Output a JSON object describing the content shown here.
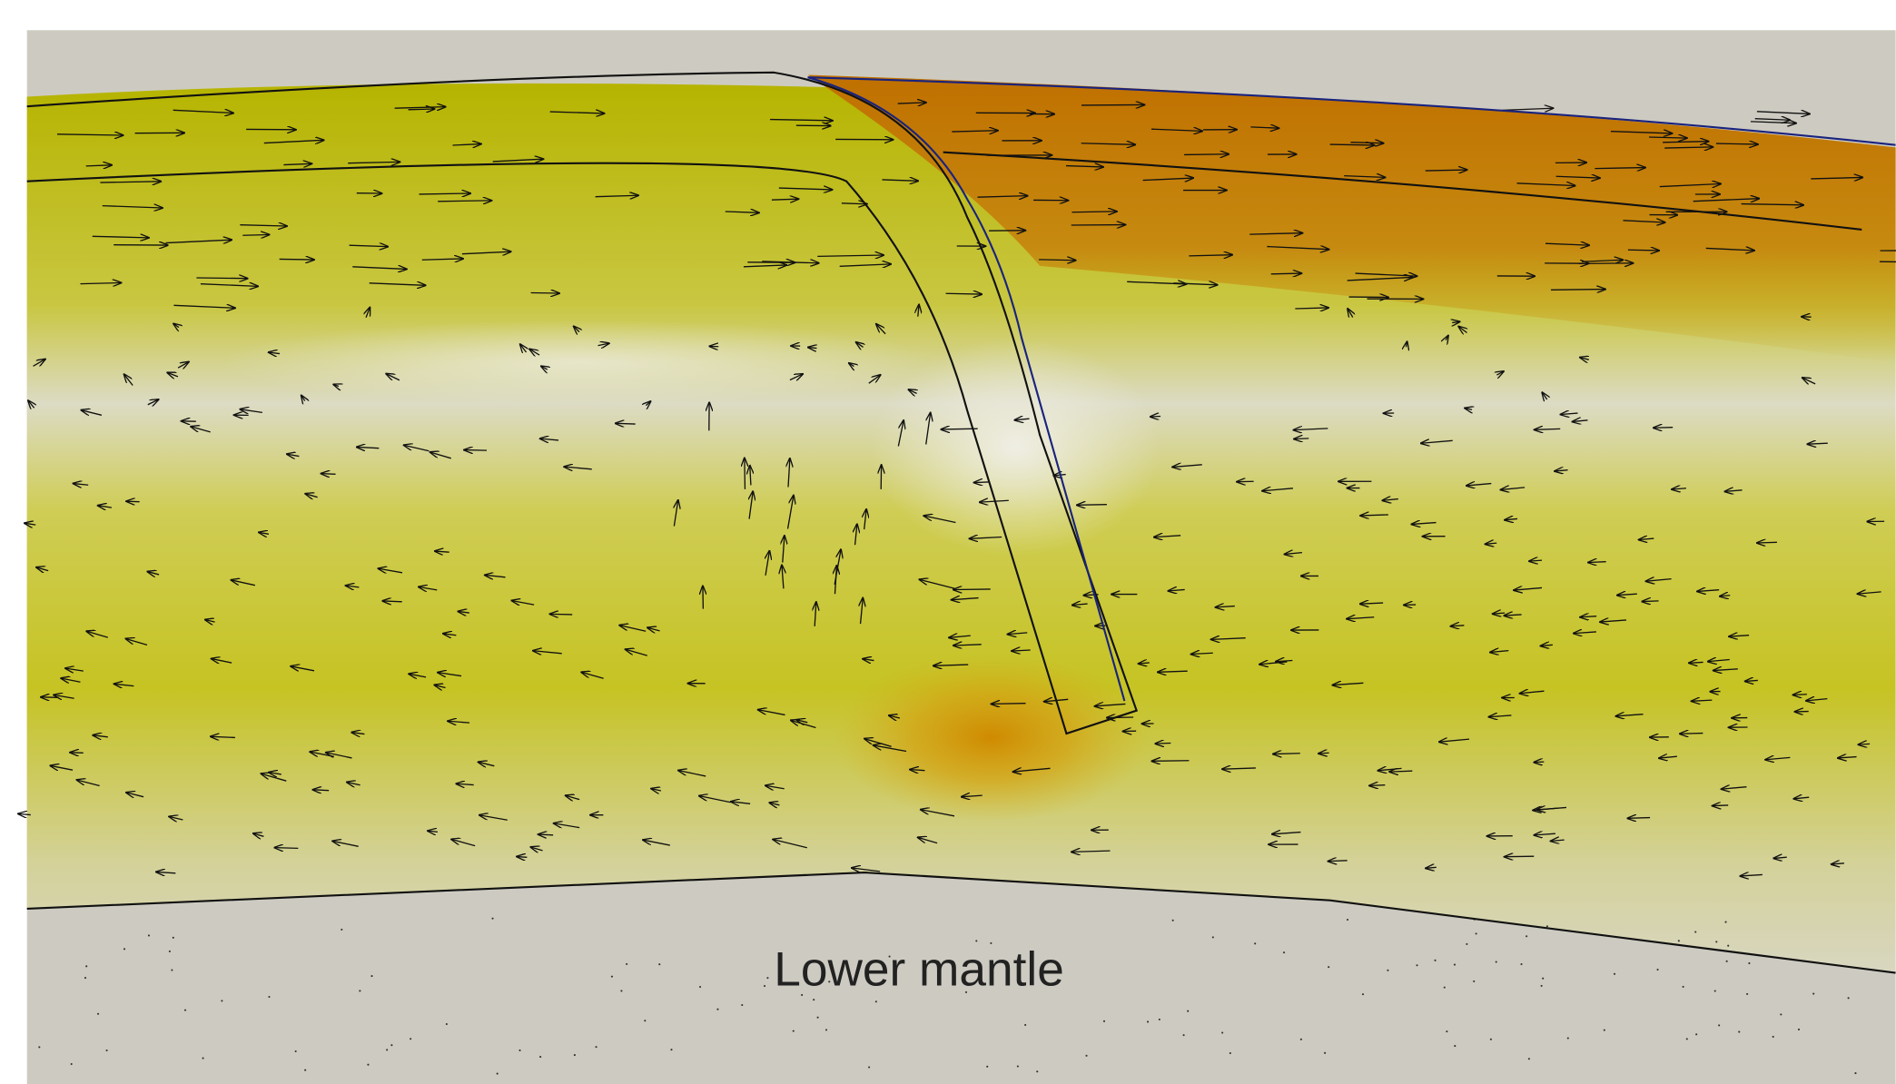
{
  "label": "Lower mantle"
}
